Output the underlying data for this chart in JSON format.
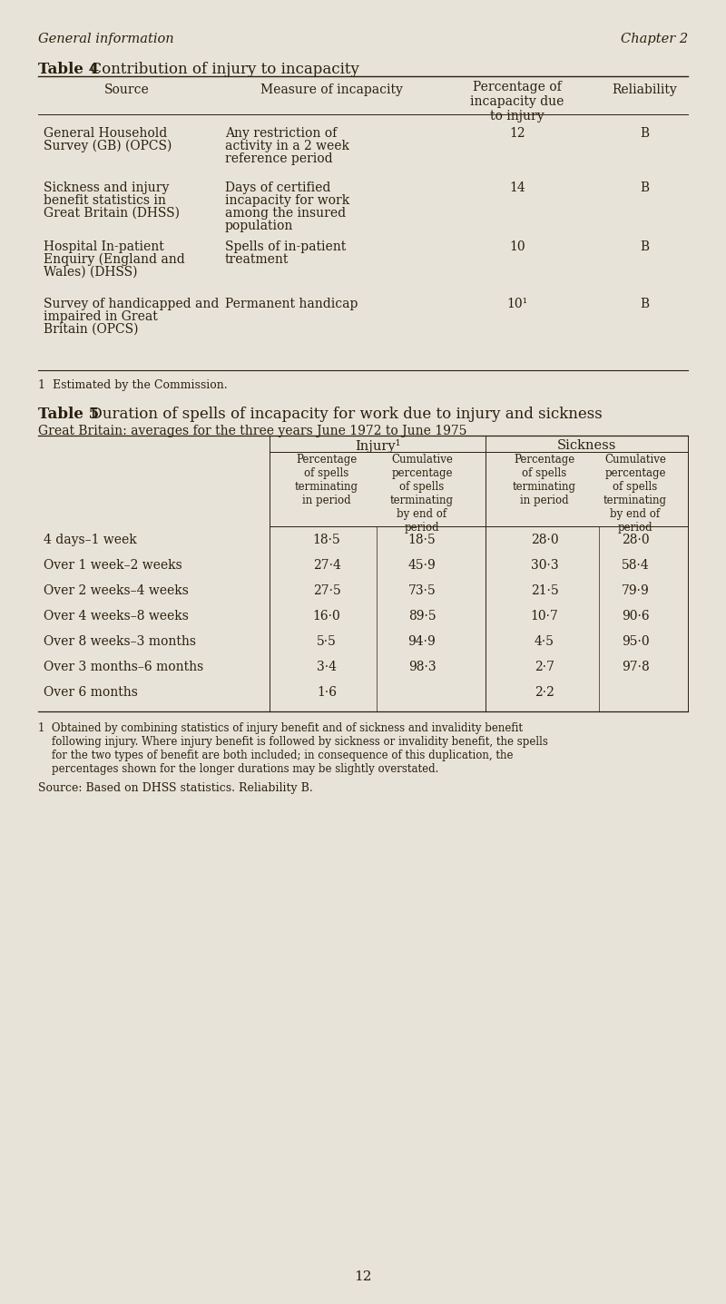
{
  "bg_color": "#e8e3d8",
  "text_color": "#2a1f0e",
  "page_header_left": "General information",
  "page_header_right": "Chapter 2",
  "table4_title_bold": "Table 4",
  "table4_title_normal": "  Contribution of injury to incapacity",
  "table4_col_headers": [
    "Source",
    "Measure of incapacity",
    "Percentage of\nincapacity due\nto injury",
    "Reliability"
  ],
  "table4_rows": [
    [
      "General Household\nSurvey (GB) (OPCS)",
      "Any restriction of\nactivity in a 2 week\nreference period",
      "12",
      "B"
    ],
    [
      "Sickness and injury\nbenefit statistics in\nGreat Britain (DHSS)",
      "Days of certified\nincapacity for work\namong the insured\npopulation",
      "14",
      "B"
    ],
    [
      "Hospital In-patient\nEnquiry (England and\nWales) (DHSS)",
      "Spells of in-patient\ntreatment",
      "10",
      "B"
    ],
    [
      "Survey of handicapped and\nimpaired in Great\nBritain (OPCS)",
      "Permanent handicap",
      "10¹",
      "B"
    ]
  ],
  "table4_footnote": "1  Estimated by the Commission.",
  "table5_title_bold": "Table 5",
  "table5_title_normal": "  Duration of spells of incapacity for work due to injury and sickness",
  "table5_subtitle": "Great Britain: averages for the three years June 1972 to June 1975",
  "table5_group_headers": [
    "Injury¹",
    "Sickness"
  ],
  "table5_col_headers": [
    "Percentage\nof spells\nterminating\nin period",
    "Cumulative\npercentage\nof spells\nterminating\nby end of\nperiod",
    "Percentage\nof spells\nterminating\nin period",
    "Cumulative\npercentage\nof spells\nterminating\nby end of\nperiod"
  ],
  "table5_rows": [
    [
      "4 days–1 week",
      "18·5",
      "18·5",
      "28·0",
      "28·0"
    ],
    [
      "Over 1 week–2 weeks",
      "27·4",
      "45·9",
      "30·3",
      "58·4"
    ],
    [
      "Over 2 weeks–4 weeks",
      "27·5",
      "73·5",
      "21·5",
      "79·9"
    ],
    [
      "Over 4 weeks–8 weeks",
      "16·0",
      "89·5",
      "10·7",
      "90·6"
    ],
    [
      "Over 8 weeks–3 months",
      "5·5",
      "94·9",
      "4·5",
      "95·0"
    ],
    [
      "Over 3 months–6 months",
      "3·4",
      "98·3",
      "2·7",
      "97·8"
    ],
    [
      "Over 6 months",
      "1·6",
      "",
      "2·2",
      ""
    ]
  ],
  "table5_footnote_lines": [
    "1  Obtained by combining statistics of injury benefit and of sickness and invalidity benefit",
    "    following injury. Where injury benefit is followed by sickness or invalidity benefit, the spells",
    "    for the two types of benefit are both included; in consequence of this duplication, the",
    "    percentages shown for the longer durations may be slightly overstated."
  ],
  "table5_source": "Source: Based on DHSS statistics. Reliability B.",
  "page_number": "12"
}
